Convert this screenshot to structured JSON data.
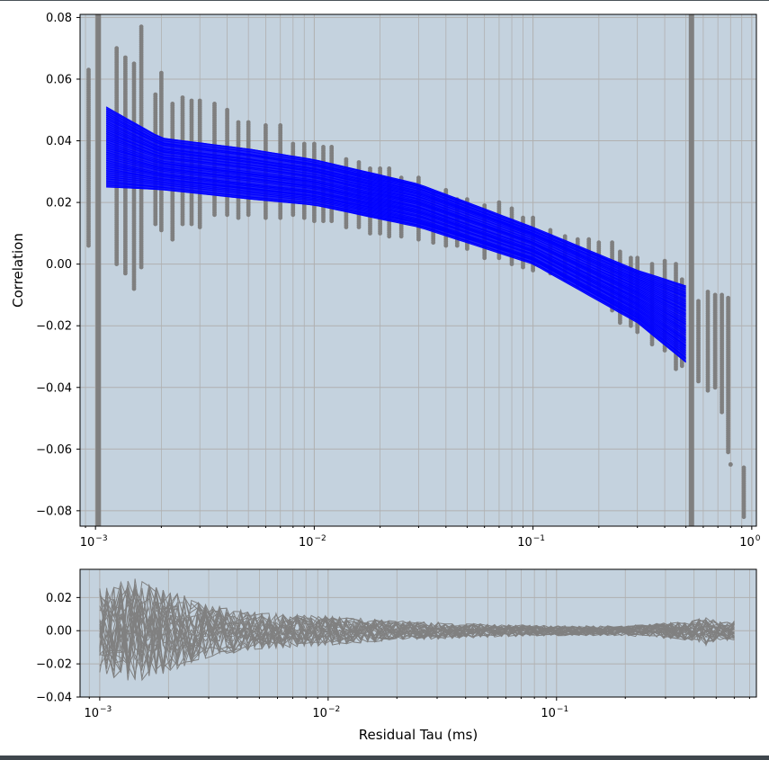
{
  "chart_data": [
    {
      "type": "scatter",
      "panel": "main",
      "title": "",
      "xlabel": "",
      "ylabel": "Correlation",
      "xscale": "log",
      "xlim": [
        0.00085,
        1.05
      ],
      "ylim": [
        -0.085,
        0.081
      ],
      "yticks": [
        -0.08,
        -0.06,
        -0.04,
        -0.02,
        0.0,
        0.02,
        0.04,
        0.06,
        0.08
      ],
      "ytick_labels": [
        "−0.08",
        "−0.06",
        "−0.04",
        "−0.02",
        "0.00",
        "0.02",
        "0.04",
        "0.06",
        "0.08"
      ],
      "xticks": [
        0.001,
        0.01,
        0.1,
        1
      ],
      "xtick_labels": [
        [
          "10",
          "−3"
        ],
        [
          "10",
          "−2"
        ],
        [
          "10",
          "−1"
        ],
        [
          "10",
          "0"
        ]
      ],
      "grid": true,
      "background": "#c4d2de",
      "vertical_bands_x": [
        0.00103,
        0.53
      ],
      "fit_lines": {
        "color": "#0000ff",
        "x_range": [
          0.00112,
          0.5
        ],
        "upper_envelope": {
          "x": [
            0.00112,
            0.002,
            0.005,
            0.01,
            0.03,
            0.1,
            0.3,
            0.5
          ],
          "y": [
            0.051,
            0.041,
            0.0375,
            0.034,
            0.026,
            0.012,
            -0.002,
            -0.007
          ]
        },
        "lower_envelope": {
          "x": [
            0.00112,
            0.002,
            0.005,
            0.01,
            0.03,
            0.1,
            0.3,
            0.5
          ],
          "y": [
            0.025,
            0.024,
            0.021,
            0.019,
            0.012,
            0.0,
            -0.019,
            -0.032
          ]
        }
      },
      "scatter_columns": [
        {
          "x": 0.00093,
          "ymin": 0.006,
          "ymax": 0.063
        },
        {
          "x": 0.00125,
          "ymin": 0.0,
          "ymax": 0.07
        },
        {
          "x": 0.00137,
          "ymin": -0.003,
          "ymax": 0.067
        },
        {
          "x": 0.0015,
          "ymin": -0.008,
          "ymax": 0.065
        },
        {
          "x": 0.00162,
          "ymin": -0.001,
          "ymax": 0.077
        },
        {
          "x": 0.00188,
          "ymin": 0.013,
          "ymax": 0.055
        },
        {
          "x": 0.002,
          "ymin": 0.011,
          "ymax": 0.062
        },
        {
          "x": 0.00225,
          "ymin": 0.008,
          "ymax": 0.052
        },
        {
          "x": 0.0025,
          "ymin": 0.013,
          "ymax": 0.054
        },
        {
          "x": 0.00275,
          "ymin": 0.013,
          "ymax": 0.053
        },
        {
          "x": 0.003,
          "ymin": 0.012,
          "ymax": 0.053
        },
        {
          "x": 0.0035,
          "ymin": 0.016,
          "ymax": 0.052
        },
        {
          "x": 0.004,
          "ymin": 0.016,
          "ymax": 0.05
        },
        {
          "x": 0.0045,
          "ymin": 0.015,
          "ymax": 0.046
        },
        {
          "x": 0.005,
          "ymin": 0.016,
          "ymax": 0.046
        },
        {
          "x": 0.006,
          "ymin": 0.015,
          "ymax": 0.045
        },
        {
          "x": 0.007,
          "ymin": 0.015,
          "ymax": 0.045
        },
        {
          "x": 0.008,
          "ymin": 0.016,
          "ymax": 0.039
        },
        {
          "x": 0.009,
          "ymin": 0.015,
          "ymax": 0.039
        },
        {
          "x": 0.01,
          "ymin": 0.014,
          "ymax": 0.039
        },
        {
          "x": 0.011,
          "ymin": 0.014,
          "ymax": 0.038
        },
        {
          "x": 0.012,
          "ymin": 0.014,
          "ymax": 0.038
        },
        {
          "x": 0.014,
          "ymin": 0.012,
          "ymax": 0.034
        },
        {
          "x": 0.016,
          "ymin": 0.012,
          "ymax": 0.033
        },
        {
          "x": 0.018,
          "ymin": 0.01,
          "ymax": 0.031
        },
        {
          "x": 0.02,
          "ymin": 0.01,
          "ymax": 0.031
        },
        {
          "x": 0.022,
          "ymin": 0.009,
          "ymax": 0.031
        },
        {
          "x": 0.025,
          "ymin": 0.009,
          "ymax": 0.028
        },
        {
          "x": 0.03,
          "ymin": 0.008,
          "ymax": 0.028
        },
        {
          "x": 0.035,
          "ymin": 0.007,
          "ymax": 0.023
        },
        {
          "x": 0.04,
          "ymin": 0.006,
          "ymax": 0.024
        },
        {
          "x": 0.045,
          "ymin": 0.006,
          "ymax": 0.021
        },
        {
          "x": 0.05,
          "ymin": 0.005,
          "ymax": 0.021
        },
        {
          "x": 0.06,
          "ymin": 0.002,
          "ymax": 0.019
        },
        {
          "x": 0.07,
          "ymin": 0.002,
          "ymax": 0.02
        },
        {
          "x": 0.08,
          "ymin": 0.0,
          "ymax": 0.018
        },
        {
          "x": 0.09,
          "ymin": -0.001,
          "ymax": 0.015
        },
        {
          "x": 0.1,
          "ymin": -0.002,
          "ymax": 0.015
        },
        {
          "x": 0.12,
          "ymin": -0.003,
          "ymax": 0.011
        },
        {
          "x": 0.14,
          "ymin": -0.005,
          "ymax": 0.009
        },
        {
          "x": 0.16,
          "ymin": -0.007,
          "ymax": 0.008
        },
        {
          "x": 0.18,
          "ymin": -0.008,
          "ymax": 0.008
        },
        {
          "x": 0.2,
          "ymin": -0.01,
          "ymax": 0.007
        },
        {
          "x": 0.23,
          "ymin": -0.015,
          "ymax": 0.007
        },
        {
          "x": 0.25,
          "ymin": -0.019,
          "ymax": 0.004
        },
        {
          "x": 0.28,
          "ymin": -0.02,
          "ymax": 0.002
        },
        {
          "x": 0.3,
          "ymin": -0.022,
          "ymax": 0.002
        },
        {
          "x": 0.35,
          "ymin": -0.026,
          "ymax": 0.0
        },
        {
          "x": 0.4,
          "ymin": -0.028,
          "ymax": 0.001
        },
        {
          "x": 0.45,
          "ymin": -0.034,
          "ymax": 0.0
        },
        {
          "x": 0.48,
          "ymin": -0.033,
          "ymax": -0.005
        },
        {
          "x": 0.57,
          "ymin": -0.038,
          "ymax": -0.012
        },
        {
          "x": 0.63,
          "ymin": -0.041,
          "ymax": -0.009
        },
        {
          "x": 0.68,
          "ymin": -0.04,
          "ymax": -0.01
        },
        {
          "x": 0.73,
          "ymin": -0.048,
          "ymax": -0.01
        },
        {
          "x": 0.78,
          "ymin": -0.061,
          "ymax": -0.011
        },
        {
          "x": 0.8,
          "ymin": -0.065,
          "ymax": -0.065
        },
        {
          "x": 0.92,
          "ymin": -0.082,
          "ymax": -0.066
        }
      ]
    },
    {
      "type": "line",
      "panel": "residual",
      "title": "",
      "xlabel": "Residual Tau (ms)",
      "ylabel": "",
      "xscale": "log",
      "xlim": [
        0.00082,
        0.75
      ],
      "ylim": [
        -0.04,
        0.037
      ],
      "yticks": [
        -0.04,
        -0.02,
        0.0,
        0.02
      ],
      "ytick_labels": [
        "−0.04",
        "−0.02",
        "0.00",
        "0.02"
      ],
      "xticks": [
        0.001,
        0.01,
        0.1
      ],
      "xtick_labels": [
        [
          "10",
          "−3"
        ],
        [
          "10",
          "−2"
        ],
        [
          "10",
          "−1"
        ]
      ],
      "grid": true,
      "background": "#c4d2de",
      "line_color": "#808080",
      "x_range": [
        0.001,
        0.6
      ],
      "residual_spread_envelope": {
        "x": [
          0.001,
          0.0014,
          0.002,
          0.003,
          0.005,
          0.01,
          0.02,
          0.05,
          0.1,
          0.2,
          0.4,
          0.45,
          0.5,
          0.6
        ],
        "y": [
          0.026,
          0.032,
          0.025,
          0.016,
          0.011,
          0.009,
          0.006,
          0.004,
          0.003,
          0.003,
          0.006,
          0.009,
          0.006,
          0.006
        ]
      }
    }
  ]
}
